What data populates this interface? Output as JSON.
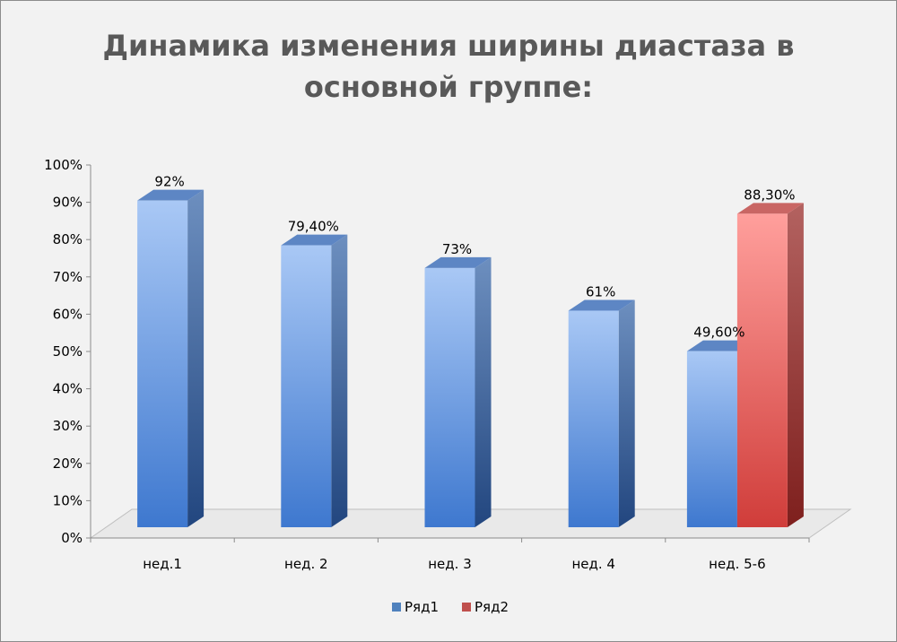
{
  "chart_data": {
    "type": "bar",
    "title": "Динамика изменения ширины диастаза в основной группе:",
    "title_lines": [
      "Динамика изменения ширины диастаза в",
      "основной группе:"
    ],
    "categories": [
      "нед.1",
      "нед. 2",
      "нед. 3",
      "нед. 4",
      "нед. 5-6"
    ],
    "series": [
      {
        "name": "Ряд1",
        "color": "#4f81bd",
        "values": [
          92,
          79.4,
          73,
          61,
          49.6
        ],
        "labels": [
          "92%",
          "79,40%",
          "73%",
          "61%",
          "49,60%"
        ]
      },
      {
        "name": "Ряд2",
        "color": "#c0504d",
        "values": [
          null,
          null,
          null,
          null,
          88.3
        ],
        "labels": [
          "",
          "",
          "",
          "",
          "88,30%"
        ]
      }
    ],
    "ylim": [
      0,
      100
    ],
    "yticks": [
      "0%",
      "10%",
      "20%",
      "30%",
      "40%",
      "50%",
      "60%",
      "70%",
      "80%",
      "90%",
      "100%"
    ],
    "xlabel": "",
    "ylabel": "",
    "legend_position": "bottom",
    "grid": false,
    "style": "3d-column"
  }
}
